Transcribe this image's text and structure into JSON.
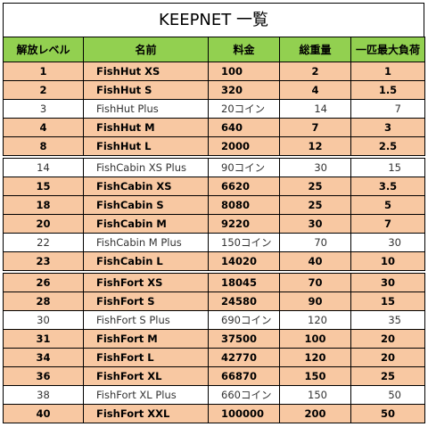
{
  "title": "KEEPNET 一覧",
  "table": {
    "header": [
      "解放レベル",
      "名前",
      "料金",
      "総重量",
      "一匹最大負荷"
    ],
    "groups": [
      [
        [
          "1",
          "FishHut XS",
          "100",
          "2",
          "1"
        ],
        [
          "2",
          "FishHut S",
          "320",
          "4",
          "1.5"
        ],
        [
          "3",
          "FishHut Plus",
          "20コイン",
          "14",
          "7"
        ],
        [
          "4",
          "FishHut M",
          "640",
          "7",
          "3"
        ],
        [
          "8",
          "FishHut L",
          "2000",
          "12",
          "2.5"
        ]
      ],
      [
        [
          "14",
          "FishCabin XS Plus",
          "90コイン",
          "30",
          "15"
        ],
        [
          "15",
          "FishCabin XS",
          "6620",
          "25",
          "3.5"
        ],
        [
          "18",
          "FishCabin S",
          "8080",
          "25",
          "5"
        ],
        [
          "20",
          "FishCabin M",
          "9220",
          "30",
          "7"
        ],
        [
          "22",
          "FishCabin M Plus",
          "150コイン",
          "70",
          "30"
        ],
        [
          "23",
          "FishCabin L",
          "14020",
          "40",
          "10"
        ]
      ],
      [
        [
          "26",
          "FishFort XS",
          "18045",
          "70",
          "30"
        ],
        [
          "28",
          "FishFort S",
          "24580",
          "90",
          "15"
        ],
        [
          "30",
          "FishFort S Plus",
          "690コイン",
          "120",
          "35"
        ],
        [
          "31",
          "FishFort M",
          "37500",
          "100",
          "20"
        ],
        [
          "34",
          "FishFort L",
          "42770",
          "120",
          "20"
        ],
        [
          "36",
          "FishFort XL",
          "66870",
          "150",
          "25"
        ],
        [
          "38",
          "FishFort XL Plus",
          "660コイン",
          "150",
          "50"
        ],
        [
          "40",
          "FishFort XXL",
          "100000",
          "200",
          "50"
        ]
      ]
    ]
  }
}
